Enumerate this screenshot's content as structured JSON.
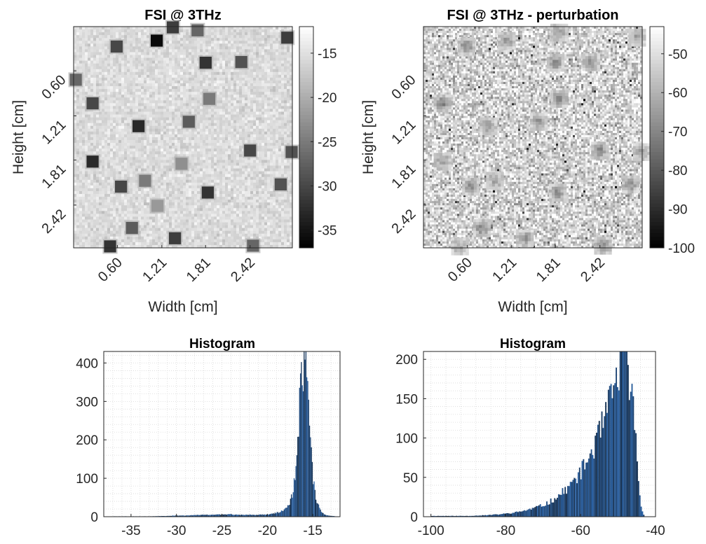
{
  "chart_data": [
    {
      "type": "heatmap",
      "title": "FSI @ 3THz",
      "xlabel": "Width [cm]",
      "ylabel": "Height [cm]",
      "xticks": [
        "0.60",
        "1.21",
        "1.81",
        "2.42"
      ],
      "yticks": [
        "0.60",
        "1.21",
        "1.81",
        "2.42"
      ],
      "extent_cm": [
        0,
        3.0
      ],
      "colormap": "gray",
      "colorbar": {
        "min": -37,
        "max": -12,
        "ticks": [
          -15,
          -20,
          -25,
          -30,
          -35
        ]
      },
      "background_level": -15.5,
      "targets": [
        {
          "x": 0.59,
          "y": 0.27,
          "level": -30
        },
        {
          "x": 1.14,
          "y": 0.19,
          "level": -36
        },
        {
          "x": 1.36,
          "y": 0.01,
          "level": -31
        },
        {
          "x": 1.7,
          "y": 0.05,
          "level": -27
        },
        {
          "x": 1.81,
          "y": 0.49,
          "level": -32
        },
        {
          "x": 2.3,
          "y": 0.48,
          "level": -29
        },
        {
          "x": 2.93,
          "y": 0.15,
          "level": -31
        },
        {
          "x": 0.03,
          "y": 0.72,
          "level": -27
        },
        {
          "x": 0.26,
          "y": 1.04,
          "level": -30
        },
        {
          "x": 1.86,
          "y": 0.98,
          "level": -25
        },
        {
          "x": 0.89,
          "y": 1.35,
          "level": -33
        },
        {
          "x": 1.58,
          "y": 1.29,
          "level": -28
        },
        {
          "x": 2.42,
          "y": 1.68,
          "level": -30
        },
        {
          "x": 2.99,
          "y": 1.7,
          "level": -29
        },
        {
          "x": 0.26,
          "y": 1.83,
          "level": -33
        },
        {
          "x": 1.48,
          "y": 1.86,
          "level": -23
        },
        {
          "x": 0.65,
          "y": 2.17,
          "level": -30
        },
        {
          "x": 0.98,
          "y": 2.09,
          "level": -25
        },
        {
          "x": 1.84,
          "y": 2.25,
          "level": -32
        },
        {
          "x": 2.84,
          "y": 2.14,
          "level": -29
        },
        {
          "x": 1.15,
          "y": 2.43,
          "level": -22
        },
        {
          "x": 0.8,
          "y": 2.73,
          "level": -28
        },
        {
          "x": 1.39,
          "y": 2.87,
          "level": -31
        },
        {
          "x": 0.5,
          "y": 2.98,
          "level": -32
        },
        {
          "x": 2.46,
          "y": 2.97,
          "level": -27
        }
      ]
    },
    {
      "type": "heatmap",
      "title": "FSI @ 3THz - perturbation",
      "xlabel": "Width [cm]",
      "ylabel": "Height [cm]",
      "xticks": [
        "0.60",
        "1.21",
        "1.81",
        "2.42"
      ],
      "yticks": [
        "0.60",
        "1.21",
        "1.81",
        "2.42"
      ],
      "extent_cm": [
        0,
        3.0
      ],
      "colormap": "gray",
      "colorbar": {
        "min": -100,
        "max": -43,
        "ticks": [
          -50,
          -60,
          -70,
          -80,
          -90,
          -100
        ]
      },
      "background_level": -53,
      "targets": [
        {
          "x": 0.59,
          "y": 0.27,
          "level": -72
        },
        {
          "x": 1.14,
          "y": 0.19,
          "level": -68
        },
        {
          "x": 1.81,
          "y": 0.49,
          "level": -70
        },
        {
          "x": 2.3,
          "y": 0.48,
          "level": -68
        },
        {
          "x": 2.93,
          "y": 0.15,
          "level": -66
        },
        {
          "x": 1.86,
          "y": 0.08,
          "level": -66
        },
        {
          "x": 0.26,
          "y": 1.04,
          "level": -74
        },
        {
          "x": 1.86,
          "y": 0.98,
          "level": -70
        },
        {
          "x": 0.89,
          "y": 1.35,
          "level": -66
        },
        {
          "x": 1.58,
          "y": 1.29,
          "level": -70
        },
        {
          "x": 2.42,
          "y": 1.68,
          "level": -72
        },
        {
          "x": 2.99,
          "y": 1.7,
          "level": -64
        },
        {
          "x": 0.26,
          "y": 1.83,
          "level": -66
        },
        {
          "x": 0.65,
          "y": 2.17,
          "level": -70
        },
        {
          "x": 0.98,
          "y": 2.09,
          "level": -64
        },
        {
          "x": 1.84,
          "y": 2.25,
          "level": -70
        },
        {
          "x": 2.84,
          "y": 2.14,
          "level": -70
        },
        {
          "x": 1.39,
          "y": 2.87,
          "level": -68
        },
        {
          "x": 0.8,
          "y": 2.73,
          "level": -72
        },
        {
          "x": 0.5,
          "y": 2.98,
          "level": -64
        },
        {
          "x": 2.46,
          "y": 2.97,
          "level": -72
        }
      ]
    },
    {
      "type": "bar",
      "title": "Histogram",
      "xticks": [
        -35,
        -30,
        -25,
        -20,
        -15
      ],
      "yticks": [
        0,
        100,
        200,
        300,
        400
      ],
      "xlim": [
        -38,
        -12
      ],
      "ylim": [
        0,
        430
      ],
      "grid": true,
      "bin_width": 0.1,
      "bar_color": "#3f7fad",
      "bins": [
        [
          -37,
          1
        ],
        [
          -35,
          1
        ],
        [
          -33,
          1
        ],
        [
          -31,
          2
        ],
        [
          -30,
          3
        ],
        [
          -29,
          3
        ],
        [
          -28,
          4
        ],
        [
          -27,
          5
        ],
        [
          -26,
          5
        ],
        [
          -25,
          6
        ],
        [
          -24,
          6
        ],
        [
          -23,
          5
        ],
        [
          -22,
          5
        ],
        [
          -21,
          5
        ],
        [
          -20,
          6
        ],
        [
          -19.5,
          8
        ],
        [
          -19,
          10
        ],
        [
          -18.5,
          14
        ],
        [
          -18,
          22
        ],
        [
          -17.5,
          40
        ],
        [
          -17.2,
          70
        ],
        [
          -17,
          110
        ],
        [
          -16.8,
          170
        ],
        [
          -16.6,
          250
        ],
        [
          -16.4,
          330
        ],
        [
          -16.2,
          385
        ],
        [
          -16,
          410
        ],
        [
          -15.9,
          430
        ],
        [
          -15.8,
          405
        ],
        [
          -15.6,
          330
        ],
        [
          -15.4,
          240
        ],
        [
          -15.2,
          160
        ],
        [
          -15,
          100
        ],
        [
          -14.8,
          60
        ],
        [
          -14.5,
          35
        ],
        [
          -14.2,
          18
        ],
        [
          -14,
          10
        ],
        [
          -13.5,
          4
        ],
        [
          -13,
          2
        ],
        [
          -12.5,
          1
        ]
      ]
    },
    {
      "type": "bar",
      "title": "Histogram",
      "xticks": [
        -100,
        -80,
        -60,
        -40
      ],
      "yticks": [
        0,
        50,
        100,
        150,
        200
      ],
      "xlim": [
        -102,
        -40
      ],
      "ylim": [
        0,
        210
      ],
      "grid": true,
      "bin_width": 0.35,
      "bar_color": "#3f7fad",
      "bins": [
        [
          -100,
          1
        ],
        [
          -95,
          1
        ],
        [
          -90,
          1
        ],
        [
          -85,
          2
        ],
        [
          -82,
          3
        ],
        [
          -80,
          4
        ],
        [
          -78,
          5
        ],
        [
          -76,
          7
        ],
        [
          -74,
          9
        ],
        [
          -72,
          12
        ],
        [
          -70,
          15
        ],
        [
          -68,
          20
        ],
        [
          -66,
          27
        ],
        [
          -64,
          35
        ],
        [
          -62,
          45
        ],
        [
          -60,
          58
        ],
        [
          -58,
          75
        ],
        [
          -56,
          95
        ],
        [
          -54,
          120
        ],
        [
          -52,
          150
        ],
        [
          -50,
          185
        ],
        [
          -49,
          205
        ],
        [
          -48,
          200
        ],
        [
          -47,
          175
        ],
        [
          -46,
          130
        ],
        [
          -45,
          75
        ],
        [
          -44.5,
          35
        ],
        [
          -44,
          12
        ],
        [
          -43.5,
          4
        ],
        [
          -43,
          1
        ]
      ]
    }
  ]
}
